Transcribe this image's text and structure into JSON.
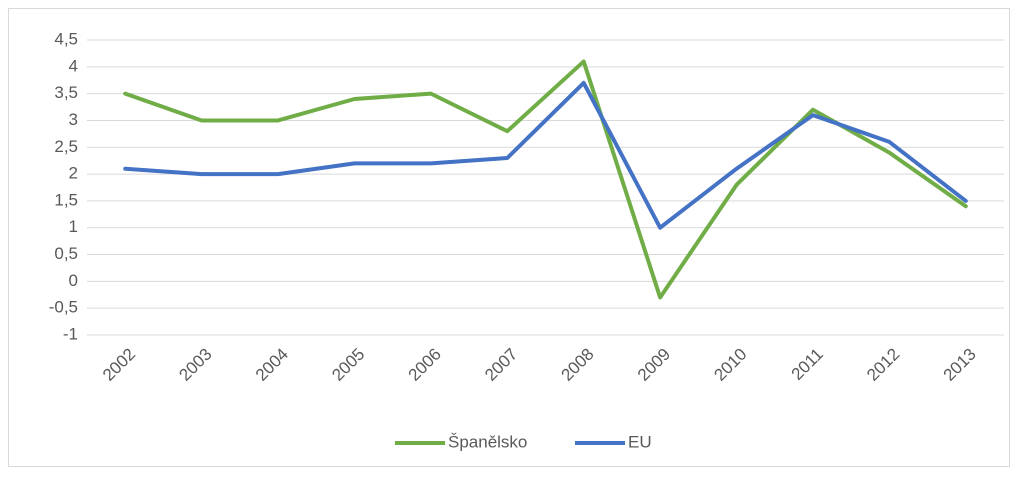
{
  "chart_data": {
    "type": "line",
    "categories": [
      "2002",
      "2003",
      "2004",
      "2005",
      "2006",
      "2007",
      "2008",
      "2009",
      "2010",
      "2011",
      "2012",
      "2013"
    ],
    "series": [
      {
        "name": "Španělsko",
        "color": "#70ad47",
        "values": [
          3.5,
          3.0,
          3.0,
          3.4,
          3.5,
          2.8,
          4.1,
          -0.3,
          1.8,
          3.2,
          2.4,
          1.4
        ]
      },
      {
        "name": "EU",
        "color": "#4472c4",
        "values": [
          2.1,
          2.0,
          2.0,
          2.2,
          2.2,
          2.3,
          3.7,
          1.0,
          2.1,
          3.1,
          2.6,
          1.5
        ]
      }
    ],
    "ylim": [
      -1,
      4.5
    ],
    "yticks": [
      -1,
      {
        "value": -0.5,
        "label": "-0,5"
      },
      0,
      {
        "value": 0.5,
        "label": "0,5"
      },
      1,
      {
        "value": 1.5,
        "label": "1,5"
      },
      2,
      {
        "value": 2.5,
        "label": "2,5"
      },
      3,
      {
        "value": 3.5,
        "label": "3,5"
      },
      4,
      {
        "value": 4.5,
        "label": "4,5"
      }
    ],
    "grid": true,
    "legend": "bottom"
  }
}
